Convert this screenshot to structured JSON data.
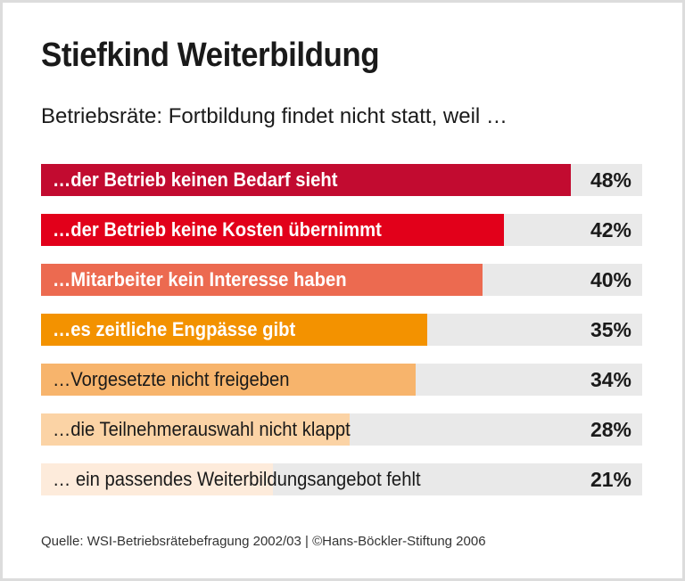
{
  "title": "Stiefkind Weiterbildung",
  "subtitle": "Betriebsräte: Fortbildung findet nicht statt, weil …",
  "source": "Quelle: WSI-Betriebsrätebefragung 2002/03 | ©Hans-Böckler-Stiftung 2006",
  "chart_data": {
    "type": "bar",
    "orientation": "horizontal",
    "unit": "%",
    "categories": [
      "…der Betrieb keinen Bedarf sieht",
      "…der Betrieb keine Kosten übernimmt",
      "…Mitarbeiter kein Interesse haben",
      "…es zeitliche Engpässe gibt",
      "…Vorgesetzte nicht freigeben",
      "…die Teilnehmerauswahl nicht klappt",
      "… ein passendes Weiterbildungsangebot fehlt"
    ],
    "values": [
      48,
      42,
      40,
      35,
      34,
      28,
      21
    ],
    "value_labels": [
      "48%",
      "42%",
      "40%",
      "35%",
      "34%",
      "28%",
      "21%"
    ],
    "colors": [
      "#c20b30",
      "#e2001a",
      "#ec6a50",
      "#f39200",
      "#f7b46c",
      "#fbd3a5",
      "#fdebdb"
    ],
    "text_colors": [
      "#ffffff",
      "#ffffff",
      "#ffffff",
      "#ffffff",
      "#1a1a1a",
      "#1a1a1a",
      "#1a1a1a"
    ],
    "track_color": "#e9e9e9",
    "xlim": [
      0,
      54.5
    ],
    "grid": false
  }
}
